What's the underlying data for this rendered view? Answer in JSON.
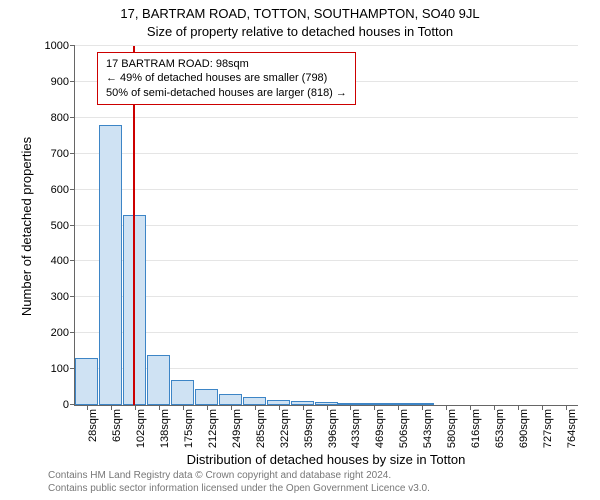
{
  "title": "17, BARTRAM ROAD, TOTTON, SOUTHAMPTON, SO40 9JL",
  "subtitle": "Size of property relative to detached houses in Totton",
  "ylabel": "Number of detached properties",
  "xlabel": "Distribution of detached houses by size in Totton",
  "footer_line1": "Contains HM Land Registry data © Crown copyright and database right 2024.",
  "footer_line2": "Contains public sector information licensed under the Open Government Licence v3.0.",
  "chart": {
    "type": "bar",
    "plot_bg": "#ffffff",
    "grid_color": "#e5e5e5",
    "axis_color": "#666666",
    "bar_fill": "#cfe2f3",
    "bar_border": "#3d85c6",
    "marker_color": "#cc0000",
    "annotation_border": "#cc0000",
    "annotation_bg": "#ffffff",
    "ylim_min": 0,
    "ylim_max": 1000,
    "ytick_step": 100,
    "ytick_labels": [
      "0",
      "100",
      "200",
      "300",
      "400",
      "500",
      "600",
      "700",
      "800",
      "900",
      "1000"
    ],
    "xtick_labels": [
      "28sqm",
      "65sqm",
      "102sqm",
      "138sqm",
      "175sqm",
      "212sqm",
      "249sqm",
      "285sqm",
      "322sqm",
      "359sqm",
      "396sqm",
      "433sqm",
      "469sqm",
      "506sqm",
      "543sqm",
      "580sqm",
      "616sqm",
      "653sqm",
      "690sqm",
      "727sqm",
      "764sqm"
    ],
    "bars": [
      130,
      780,
      530,
      140,
      70,
      45,
      32,
      22,
      14,
      10,
      8,
      6,
      4,
      3,
      2,
      1,
      1,
      0,
      0,
      0,
      0
    ],
    "marker_x_sqm": 98,
    "annotation_title": "17 BARTRAM ROAD: 98sqm",
    "annotation_line2": "← 49% of detached houses are smaller (798)",
    "annotation_line3": "50% of semi-detached houses are larger (818) →"
  }
}
